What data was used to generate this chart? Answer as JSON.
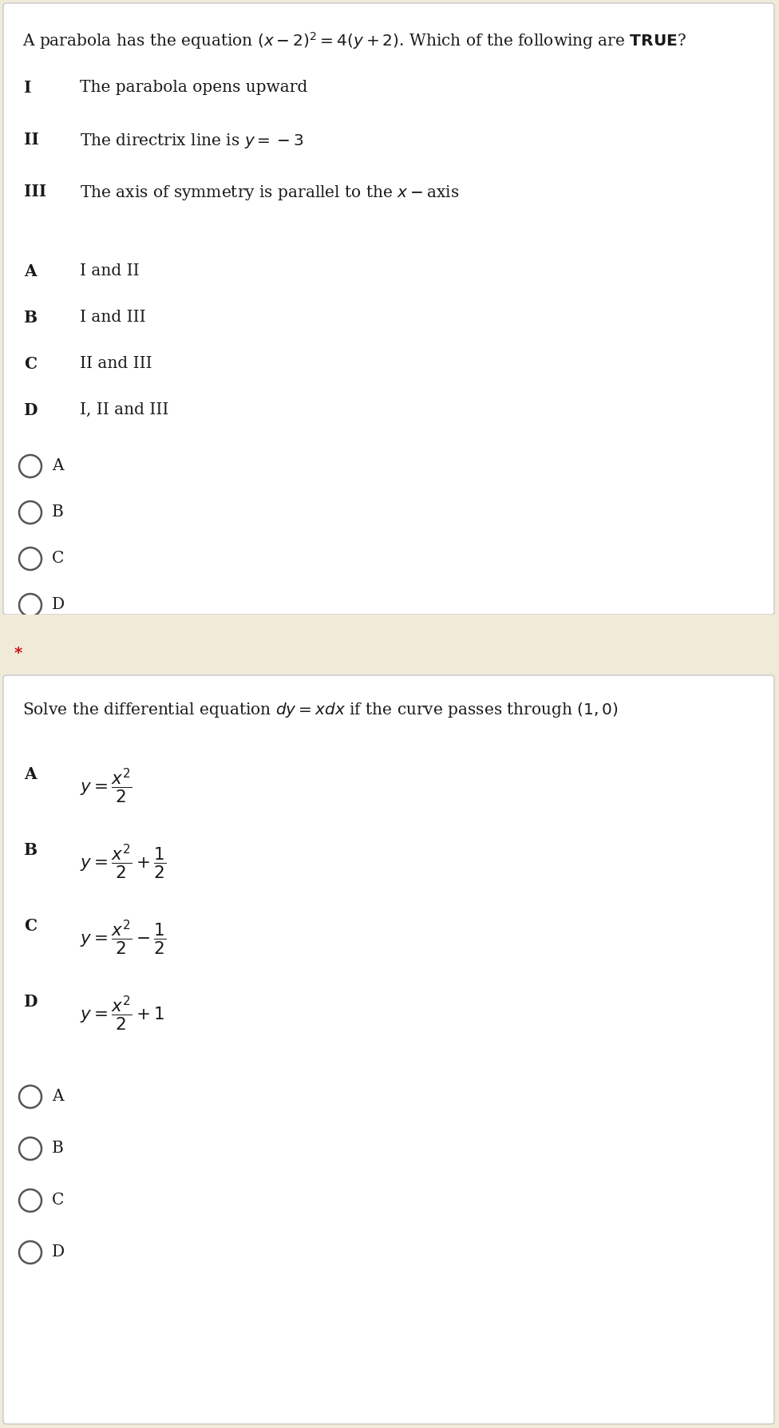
{
  "fig_width": 9.76,
  "fig_height": 17.89,
  "dpi": 100,
  "bg_color": "#f0ead8",
  "white": "#ffffff",
  "border_color": "#c8c8c8",
  "text_color": "#1a1a1a",
  "circle_edge": "#555555",
  "star_color": "#cc0000",
  "q1_title": "A parabola has the equation $(x-2)^2=4(y+2)$. Which of the following are $\\mathbf{TRUE}$?",
  "q1_items": [
    [
      "I",
      "The parabola opens upward"
    ],
    [
      "II",
      "The directrix line is $y=-3$"
    ],
    [
      "III",
      "The axis of symmetry is parallel to the $x-$axis"
    ]
  ],
  "q1_opts": [
    [
      "A",
      "I and II"
    ],
    [
      "B",
      "I and III"
    ],
    [
      "C",
      "II and III"
    ],
    [
      "D",
      "I, II and III"
    ]
  ],
  "q1_radios": [
    "A",
    "B",
    "C",
    "D"
  ],
  "star": "*",
  "q2_title": "Solve the differential equation $dy=xdx$ if the curve passes through $(1,0)$",
  "q2_opts": [
    [
      "A",
      "$y=\\dfrac{x^2}{2}$"
    ],
    [
      "B",
      "$y=\\dfrac{x^2}{2}+\\dfrac{1}{2}$"
    ],
    [
      "C",
      "$y=\\dfrac{x^2}{2}-\\dfrac{1}{2}$"
    ],
    [
      "D",
      "$y=\\dfrac{x^2}{2}+1$"
    ]
  ],
  "q2_radios": [
    "A",
    "B",
    "C",
    "D"
  ]
}
